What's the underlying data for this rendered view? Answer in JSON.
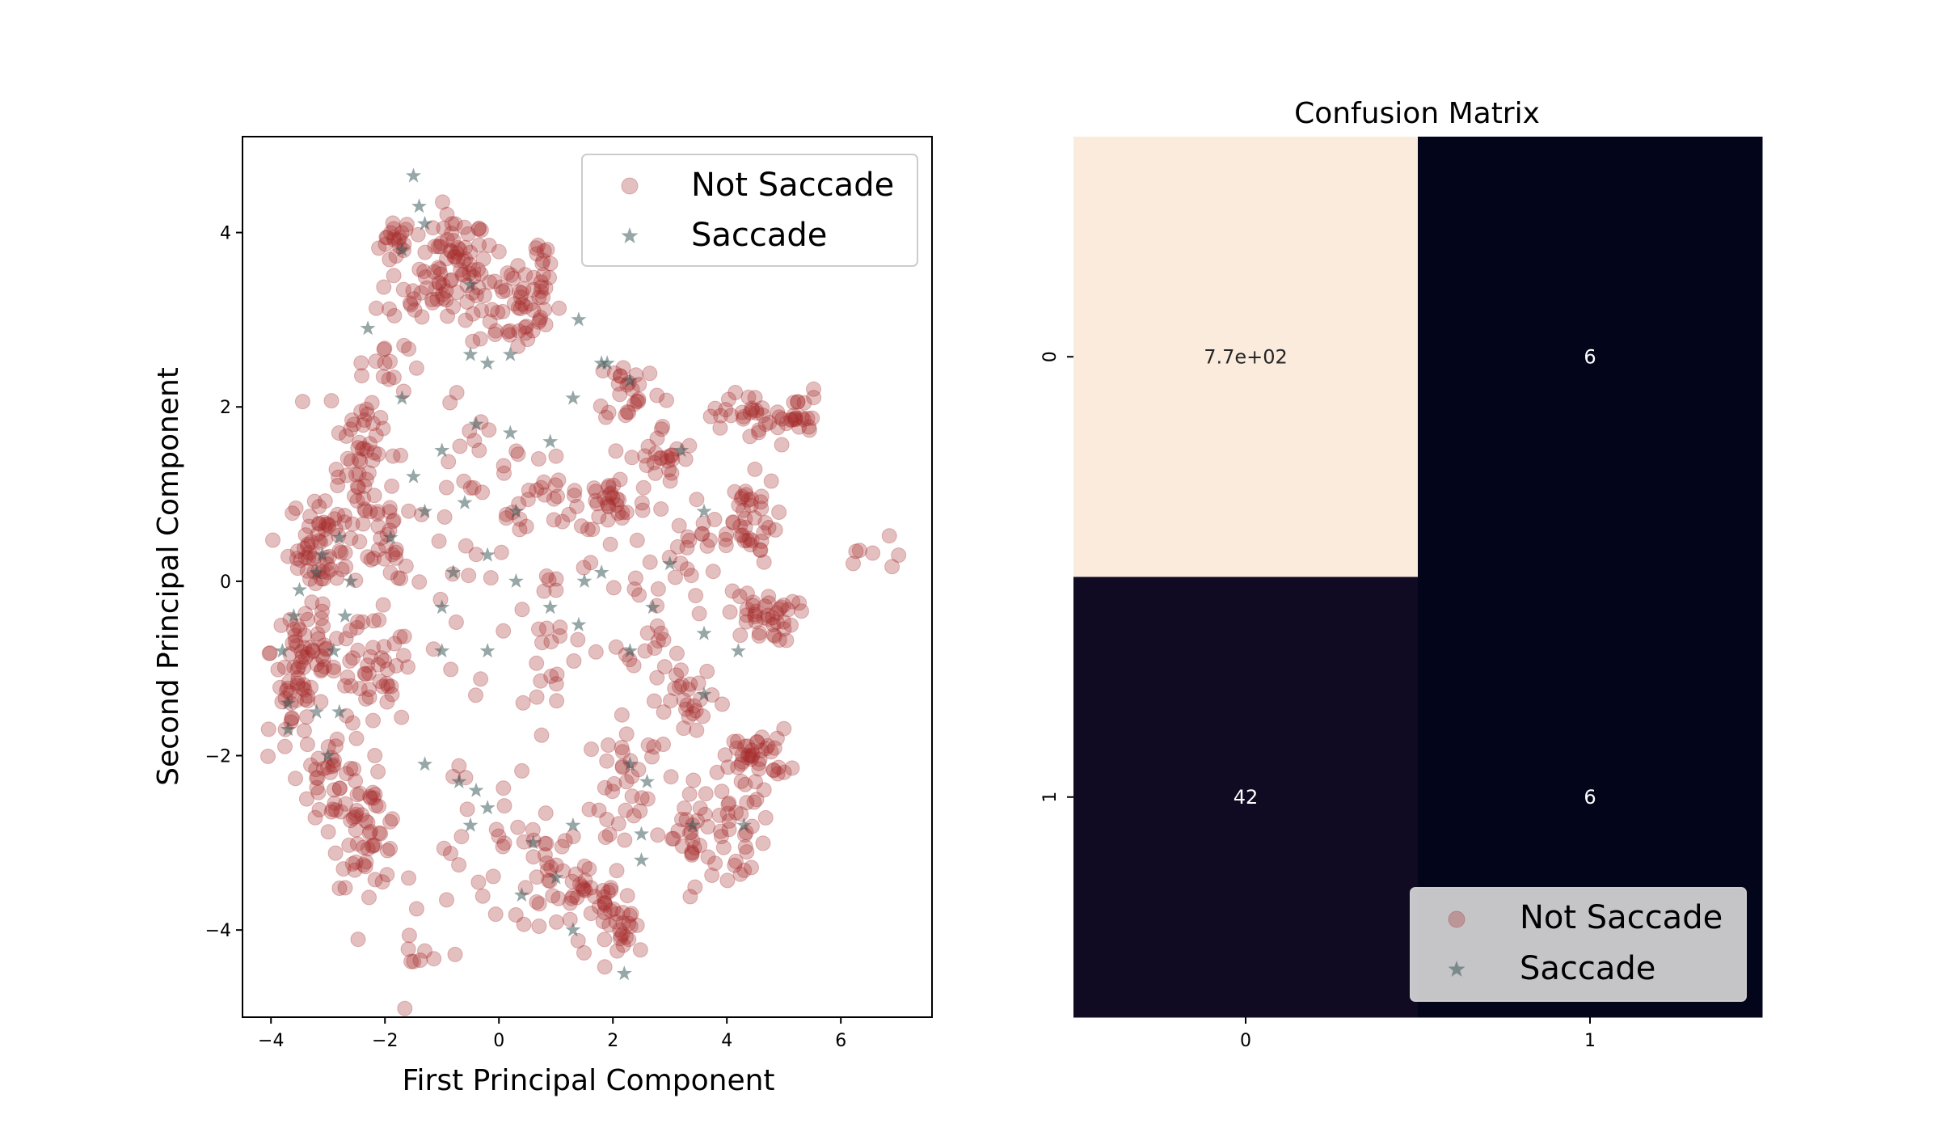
{
  "chart_data": [
    {
      "type": "scatter",
      "title": "",
      "xlabel": "First Principal Component",
      "ylabel": "Second Principal Component",
      "xlim": [
        -4.5,
        7.6
      ],
      "ylim": [
        -5.0,
        5.1
      ],
      "xticks": [
        -4,
        -2,
        0,
        2,
        4,
        6
      ],
      "xtick_labels": [
        "−4",
        "−2",
        "0",
        "2",
        "4",
        "6"
      ],
      "yticks": [
        -4,
        -2,
        0,
        2,
        4
      ],
      "ytick_labels": [
        "−4",
        "−2",
        "0",
        "2",
        "4"
      ],
      "grid": false,
      "legend_position": "top-right",
      "series": [
        {
          "name": "Not Saccade",
          "marker": "circle",
          "color": "#A52A2A",
          "alpha": 0.3,
          "clusters": [
            {
              "cx": -1.8,
              "cy": 3.9,
              "sx": 0.15,
              "sy": 0.15,
              "n": 20
            },
            {
              "cx": -0.8,
              "cy": 3.6,
              "sx": 0.3,
              "sy": 0.3,
              "n": 70
            },
            {
              "cx": 0.3,
              "cy": 3.2,
              "sx": 0.4,
              "sy": 0.3,
              "n": 60
            },
            {
              "cx": 0.8,
              "cy": 3.7,
              "sx": 0.15,
              "sy": 0.15,
              "n": 8
            },
            {
              "cx": -1.5,
              "cy": 3.3,
              "sx": 0.3,
              "sy": 0.2,
              "n": 15
            },
            {
              "cx": -2.4,
              "cy": 1.6,
              "sx": 0.3,
              "sy": 0.4,
              "n": 40
            },
            {
              "cx": -2.0,
              "cy": 2.5,
              "sx": 0.2,
              "sy": 0.2,
              "n": 12
            },
            {
              "cx": -3.1,
              "cy": 0.4,
              "sx": 0.3,
              "sy": 0.3,
              "n": 60
            },
            {
              "cx": -2.4,
              "cy": 0.8,
              "sx": 0.3,
              "sy": 0.3,
              "n": 30
            },
            {
              "cx": -1.9,
              "cy": 0.1,
              "sx": 0.15,
              "sy": 0.3,
              "n": 15
            },
            {
              "cx": -3.4,
              "cy": -0.8,
              "sx": 0.3,
              "sy": 0.35,
              "n": 50
            },
            {
              "cx": -2.3,
              "cy": -1.1,
              "sx": 0.4,
              "sy": 0.3,
              "n": 45
            },
            {
              "cx": -3.6,
              "cy": -1.5,
              "sx": 0.2,
              "sy": 0.2,
              "n": 20
            },
            {
              "cx": -2.9,
              "cy": -2.2,
              "sx": 0.3,
              "sy": 0.3,
              "n": 40
            },
            {
              "cx": -2.3,
              "cy": -2.9,
              "sx": 0.3,
              "sy": 0.3,
              "n": 50
            },
            {
              "cx": -1.4,
              "cy": -4.4,
              "sx": 0.2,
              "sy": 0.15,
              "n": 8
            },
            {
              "cx": -0.7,
              "cy": 1.3,
              "sx": 0.3,
              "sy": 0.5,
              "n": 12
            },
            {
              "cx": 0.3,
              "cy": 1.3,
              "sx": 0.3,
              "sy": 0.3,
              "n": 12
            },
            {
              "cx": 0.8,
              "cy": -0.8,
              "sx": 0.4,
              "sy": 0.5,
              "n": 20
            },
            {
              "cx": 1.2,
              "cy": 0.7,
              "sx": 0.4,
              "sy": 0.3,
              "n": 20
            },
            {
              "cx": 2.0,
              "cy": 0.9,
              "sx": 0.3,
              "sy": 0.2,
              "n": 25
            },
            {
              "cx": 2.3,
              "cy": 2.2,
              "sx": 0.3,
              "sy": 0.2,
              "n": 25
            },
            {
              "cx": 2.9,
              "cy": 1.4,
              "sx": 0.3,
              "sy": 0.2,
              "n": 25
            },
            {
              "cx": 3.3,
              "cy": 0.4,
              "sx": 0.3,
              "sy": 0.3,
              "n": 20
            },
            {
              "cx": 2.8,
              "cy": -0.4,
              "sx": 0.3,
              "sy": 0.3,
              "n": 20
            },
            {
              "cx": 4.3,
              "cy": 0.7,
              "sx": 0.3,
              "sy": 0.25,
              "n": 40
            },
            {
              "cx": 4.6,
              "cy": -0.4,
              "sx": 0.3,
              "sy": 0.15,
              "n": 40
            },
            {
              "cx": 4.2,
              "cy": 1.9,
              "sx": 0.25,
              "sy": 0.15,
              "n": 20
            },
            {
              "cx": 5.1,
              "cy": 1.9,
              "sx": 0.3,
              "sy": 0.15,
              "n": 30
            },
            {
              "cx": 6.6,
              "cy": 0.2,
              "sx": 0.3,
              "sy": 0.15,
              "n": 7
            },
            {
              "cx": 3.4,
              "cy": -1.4,
              "sx": 0.3,
              "sy": 0.2,
              "n": 25
            },
            {
              "cx": 2.5,
              "cy": -2.0,
              "sx": 0.4,
              "sy": 0.3,
              "n": 15
            },
            {
              "cx": 4.5,
              "cy": -2.0,
              "sx": 0.3,
              "sy": 0.15,
              "n": 40
            },
            {
              "cx": 4.2,
              "cy": -2.8,
              "sx": 0.3,
              "sy": 0.3,
              "n": 30
            },
            {
              "cx": 3.3,
              "cy": -2.9,
              "sx": 0.4,
              "sy": 0.3,
              "n": 30
            },
            {
              "cx": 2.1,
              "cy": -2.6,
              "sx": 0.3,
              "sy": 0.3,
              "n": 20
            },
            {
              "cx": 1.6,
              "cy": -3.6,
              "sx": 0.4,
              "sy": 0.2,
              "n": 30
            },
            {
              "cx": 2.2,
              "cy": -4.0,
              "sx": 0.25,
              "sy": 0.15,
              "n": 25
            },
            {
              "cx": 0.8,
              "cy": -3.3,
              "sx": 0.4,
              "sy": 0.3,
              "n": 30
            },
            {
              "cx": -0.5,
              "cy": -3.0,
              "sx": 0.5,
              "sy": 0.4,
              "n": 15
            },
            {
              "cx": 0.0,
              "cy": -0.5,
              "sx": 1.3,
              "sy": 1.5,
              "n": 40
            }
          ]
        },
        {
          "name": "Saccade",
          "marker": "star",
          "color": "#2F4F4F",
          "alpha": 0.5,
          "points": [
            [
              -1.5,
              4.65
            ],
            [
              -1.4,
              4.3
            ],
            [
              -1.7,
              3.8
            ],
            [
              -1.3,
              4.1
            ],
            [
              -0.5,
              3.4
            ],
            [
              -2.3,
              2.9
            ],
            [
              -0.5,
              2.6
            ],
            [
              -0.2,
              2.5
            ],
            [
              0.2,
              2.6
            ],
            [
              1.4,
              3.0
            ],
            [
              1.8,
              2.5
            ],
            [
              1.9,
              2.5
            ],
            [
              2.3,
              2.3
            ],
            [
              1.3,
              2.1
            ],
            [
              -1.7,
              2.1
            ],
            [
              -0.4,
              1.8
            ],
            [
              0.2,
              1.7
            ],
            [
              0.9,
              1.6
            ],
            [
              -1.0,
              1.5
            ],
            [
              3.2,
              1.5
            ],
            [
              -1.5,
              1.2
            ],
            [
              -1.3,
              0.8
            ],
            [
              0.3,
              0.8
            ],
            [
              -0.6,
              0.9
            ],
            [
              3.6,
              0.8
            ],
            [
              -1.9,
              0.5
            ],
            [
              -3.1,
              0.3
            ],
            [
              -2.8,
              0.5
            ],
            [
              -3.2,
              0.1
            ],
            [
              -2.6,
              0.0
            ],
            [
              -3.5,
              -0.1
            ],
            [
              -0.8,
              0.1
            ],
            [
              -0.2,
              0.3
            ],
            [
              0.3,
              0.0
            ],
            [
              1.5,
              0.0
            ],
            [
              1.8,
              0.1
            ],
            [
              3.0,
              0.2
            ],
            [
              -3.6,
              -0.4
            ],
            [
              -2.7,
              -0.4
            ],
            [
              -1.0,
              -0.3
            ],
            [
              0.9,
              -0.3
            ],
            [
              1.4,
              -0.5
            ],
            [
              2.7,
              -0.3
            ],
            [
              3.6,
              -0.6
            ],
            [
              -3.8,
              -0.8
            ],
            [
              -2.9,
              -0.8
            ],
            [
              -1.0,
              -0.8
            ],
            [
              -0.2,
              -0.8
            ],
            [
              2.3,
              -0.8
            ],
            [
              4.2,
              -0.8
            ],
            [
              -3.7,
              -1.4
            ],
            [
              -3.2,
              -1.5
            ],
            [
              -2.8,
              -1.5
            ],
            [
              -3.7,
              -1.7
            ],
            [
              3.6,
              -1.3
            ],
            [
              -3.0,
              -2.0
            ],
            [
              -1.3,
              -2.1
            ],
            [
              -0.7,
              -2.3
            ],
            [
              -0.4,
              -2.4
            ],
            [
              2.3,
              -2.1
            ],
            [
              2.6,
              -2.3
            ],
            [
              -0.5,
              -2.8
            ],
            [
              -0.2,
              -2.6
            ],
            [
              1.3,
              -2.8
            ],
            [
              2.5,
              -2.9
            ],
            [
              3.4,
              -2.8
            ],
            [
              4.3,
              -2.8
            ],
            [
              0.6,
              -3.0
            ],
            [
              2.5,
              -3.2
            ],
            [
              0.4,
              -3.6
            ],
            [
              1.0,
              -3.4
            ],
            [
              1.3,
              -4.0
            ],
            [
              2.2,
              -4.5
            ]
          ]
        }
      ]
    },
    {
      "type": "heatmap",
      "title": "Confusion Matrix",
      "x_categories": [
        "0",
        "1"
      ],
      "y_categories": [
        "0",
        "1"
      ],
      "values": [
        [
          770,
          6
        ],
        [
          42,
          6
        ]
      ],
      "annotations": [
        [
          "7.7e+02",
          "6"
        ],
        [
          "42",
          "6"
        ]
      ],
      "colormap": "rocket",
      "legend_position": "lower-right"
    }
  ],
  "legend_entries": [
    {
      "label": "Not Saccade",
      "color": "#A52A2A",
      "marker": "circle-icon"
    },
    {
      "label": "Saccade",
      "color": "#2F4F4F",
      "marker": "star-icon"
    }
  ]
}
